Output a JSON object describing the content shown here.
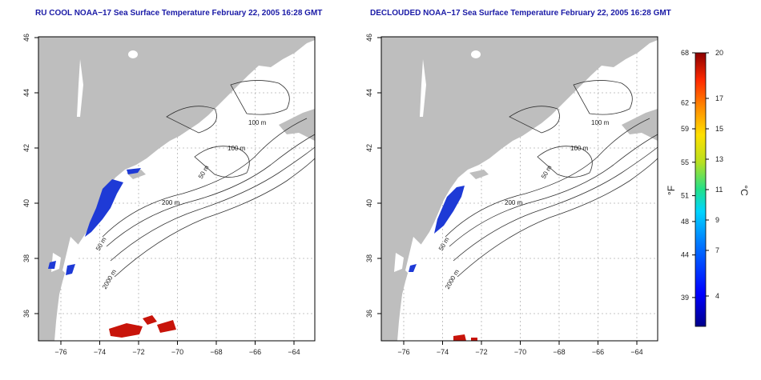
{
  "panels": [
    {
      "title": "RU COOL NOAA−17 Sea Surface Temperature February 22, 2005 16:28 GMT",
      "lon_ticks": [
        "−76",
        "−74",
        "−72",
        "−70",
        "−68",
        "−66",
        "−64"
      ],
      "lat_ticks": [
        "36",
        "38",
        "40",
        "42",
        "44",
        "46"
      ],
      "contour_labels": [
        "100 m",
        "100 m",
        "50 m",
        "200 m",
        "50 m",
        "2000 m"
      ]
    },
    {
      "title": "DECLOUDED NOAA−17 Sea Surface Temperature February 22, 2005 16:28 GMT",
      "lon_ticks": [
        "−76",
        "−74",
        "−72",
        "−70",
        "−68",
        "−66",
        "−64"
      ],
      "lat_ticks": [
        "36",
        "38",
        "40",
        "42",
        "44",
        "46"
      ],
      "contour_labels": [
        "100 m",
        "100 m",
        "50 m",
        "200 m",
        "50 m",
        "2000 m"
      ]
    }
  ],
  "colorbar": {
    "f_label": "°F",
    "c_label": "°C",
    "f_ticks": [
      {
        "label": "68",
        "c": 20
      },
      {
        "label": "62",
        "c": 16.7
      },
      {
        "label": "59",
        "c": 15
      },
      {
        "label": "55",
        "c": 12.8
      },
      {
        "label": "51",
        "c": 10.6
      },
      {
        "label": "48",
        "c": 8.9
      },
      {
        "label": "44",
        "c": 6.7
      },
      {
        "label": "39",
        "c": 3.9
      }
    ],
    "c_ticks": [
      {
        "label": "20",
        "c": 20
      },
      {
        "label": "17",
        "c": 17
      },
      {
        "label": "15",
        "c": 15
      },
      {
        "label": "13",
        "c": 13
      },
      {
        "label": "11",
        "c": 11
      },
      {
        "label": "9",
        "c": 9
      },
      {
        "label": "7",
        "c": 7
      },
      {
        "label": "4",
        "c": 4
      }
    ],
    "c_min": 2,
    "c_max": 20
  },
  "colors": {
    "land": "#bebebe",
    "cold_water": "#1e3ad6",
    "warm_water": "#c8140a",
    "title": "#1a1aa6",
    "grid": "#b4b4b4"
  }
}
